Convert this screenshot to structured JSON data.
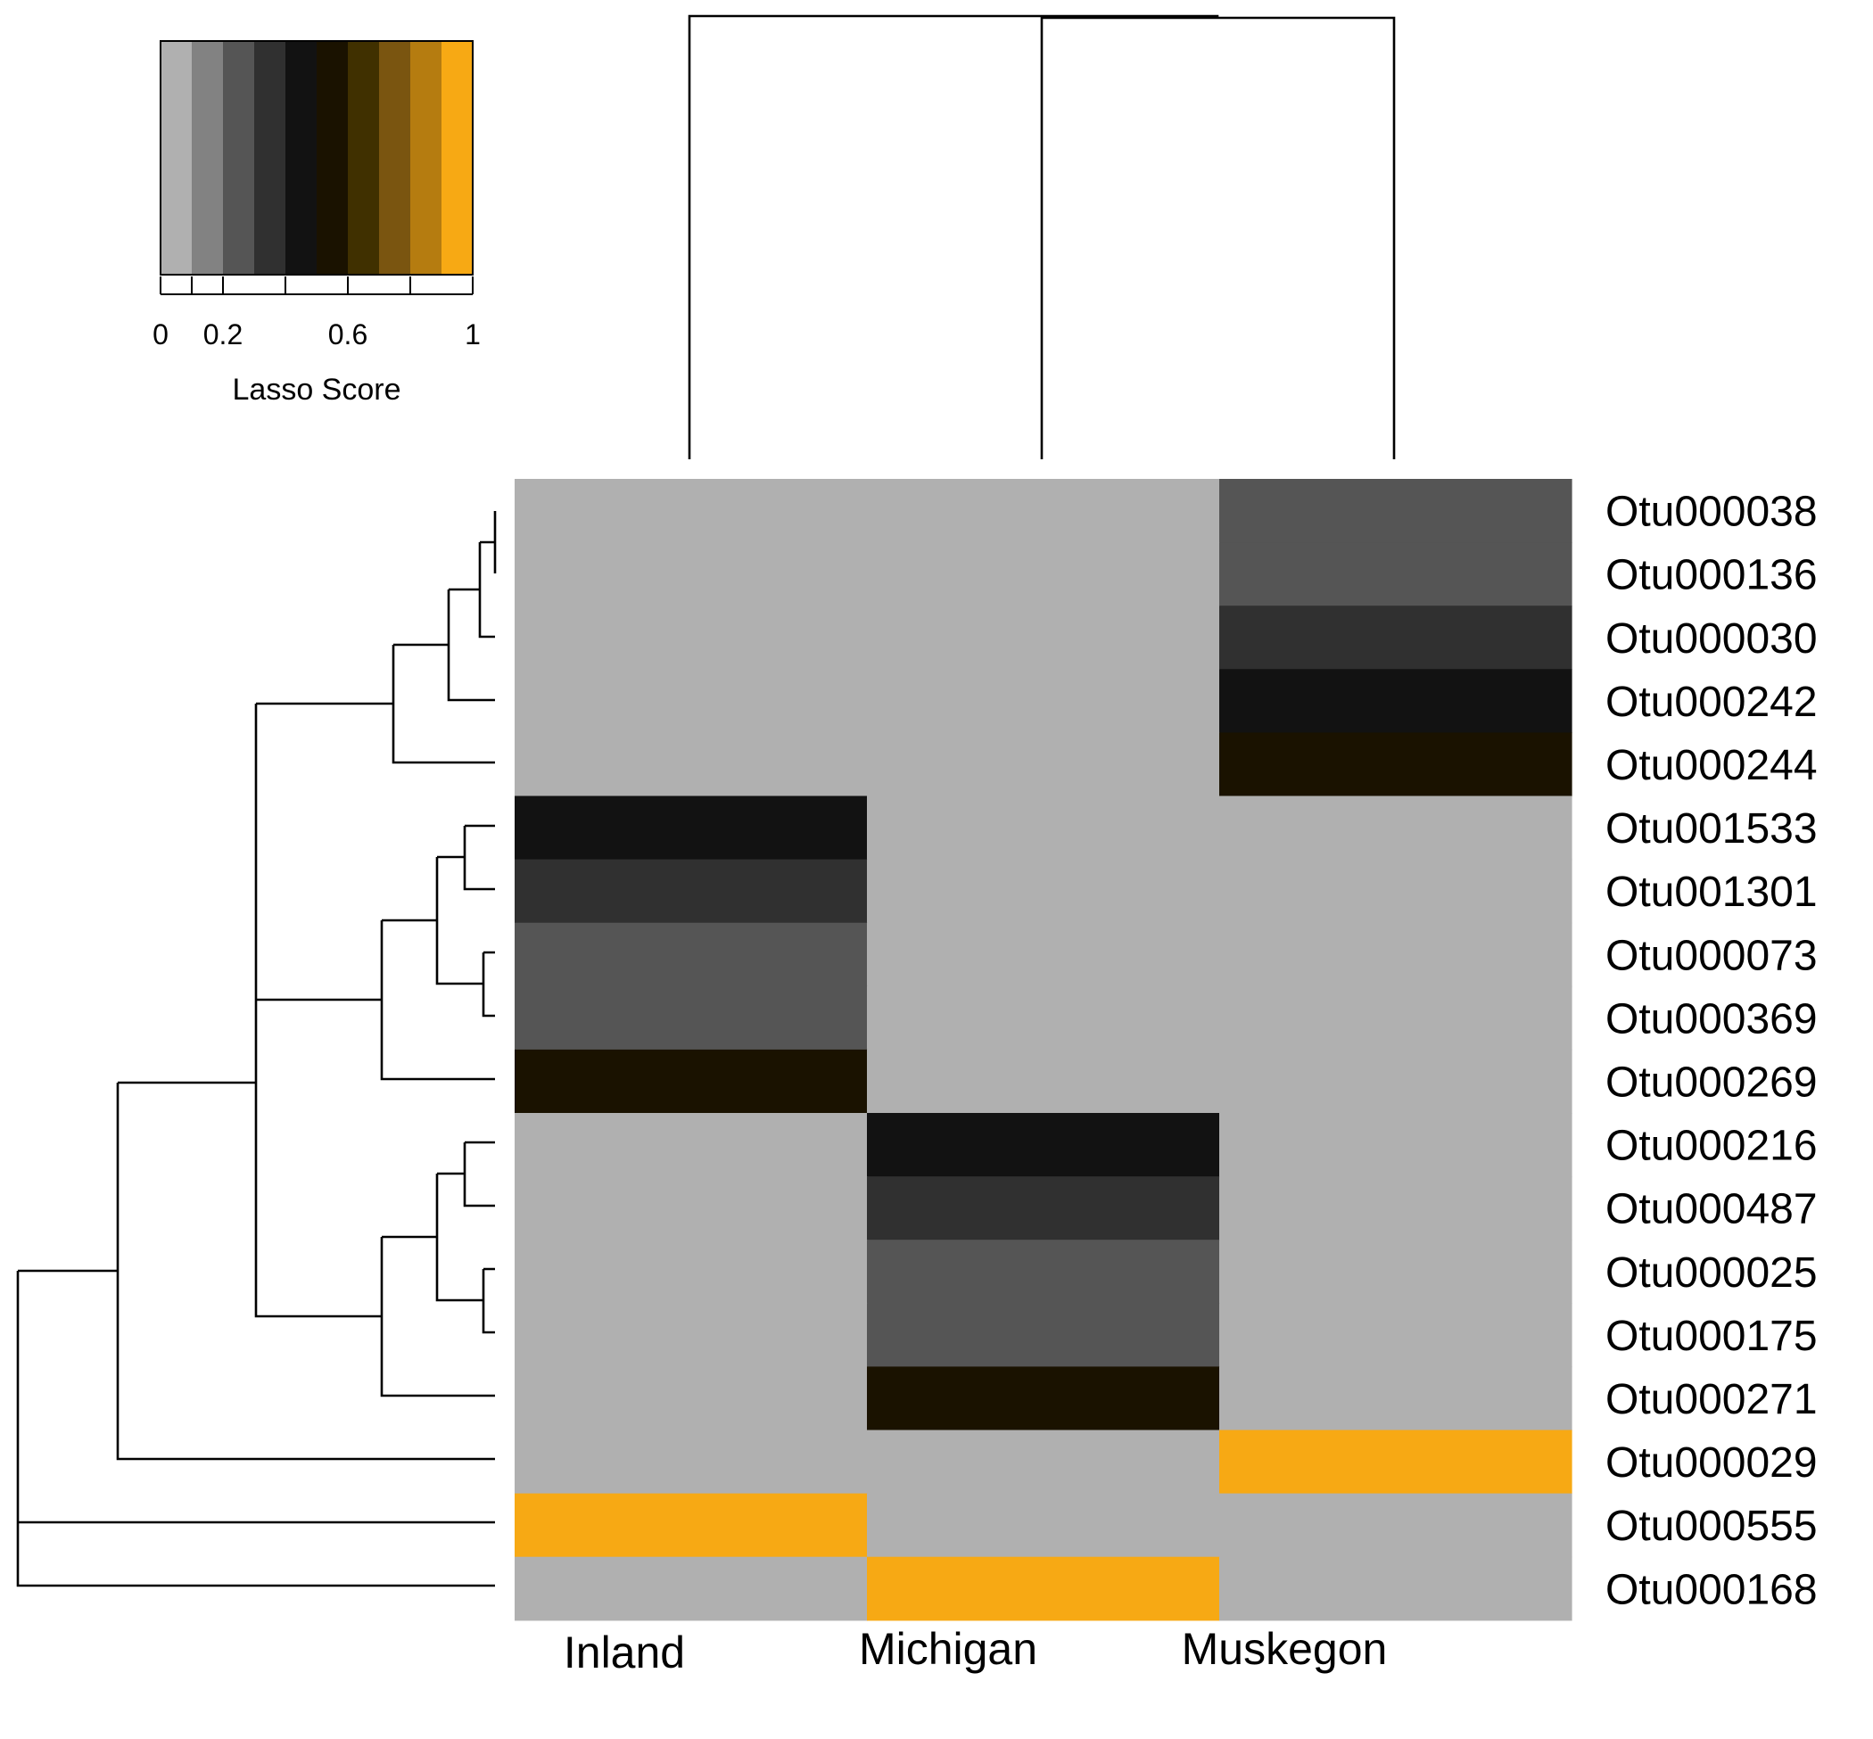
{
  "chart_data": {
    "type": "heatmap",
    "columns": [
      "Inland",
      "Michigan",
      "Muskegon"
    ],
    "rows": [
      "Otu000038",
      "Otu000136",
      "Otu000030",
      "Otu000242",
      "Otu000244",
      "Otu001533",
      "Otu001301",
      "Otu000073",
      "Otu000369",
      "Otu000269",
      "Otu000216",
      "Otu000487",
      "Otu000025",
      "Otu000175",
      "Otu000271",
      "Otu000029",
      "Otu000555",
      "Otu000168"
    ],
    "values": [
      [
        0.0,
        0.0,
        0.2
      ],
      [
        0.0,
        0.0,
        0.2
      ],
      [
        0.0,
        0.0,
        0.3
      ],
      [
        0.0,
        0.0,
        0.4
      ],
      [
        0.0,
        0.0,
        0.5
      ],
      [
        0.4,
        0.0,
        0.0
      ],
      [
        0.3,
        0.0,
        0.0
      ],
      [
        0.2,
        0.0,
        0.0
      ],
      [
        0.2,
        0.0,
        0.0
      ],
      [
        0.5,
        0.0,
        0.0
      ],
      [
        0.0,
        0.4,
        0.0
      ],
      [
        0.0,
        0.3,
        0.0
      ],
      [
        0.0,
        0.2,
        0.0
      ],
      [
        0.0,
        0.2,
        0.0
      ],
      [
        0.0,
        0.5,
        0.0
      ],
      [
        0.0,
        0.0,
        1.0
      ],
      [
        1.0,
        0.0,
        0.0
      ],
      [
        0.0,
        1.0,
        0.0
      ]
    ],
    "color_scale": {
      "title": "Lasso Score",
      "range": [
        0,
        1
      ],
      "colors": [
        "#b0b0b0",
        "#828282",
        "#555555",
        "#303030",
        "#121212",
        "#1a1200",
        "#403000",
        "#7a5510",
        "#b57c10",
        "#f7a914"
      ],
      "tick_values": [
        0,
        0.1,
        0.2,
        0.4,
        0.6,
        0.8,
        1
      ],
      "tick_labels": [
        {
          "value": 0,
          "label": "0"
        },
        {
          "value": 0.2,
          "label": "0.2"
        },
        {
          "value": 0.6,
          "label": "0.6"
        },
        {
          "value": 1,
          "label": "1"
        }
      ]
    },
    "column_dendrogram": {
      "merges": [
        {
          "left": "Michigan",
          "right": "Muskegon",
          "height": 0.98
        },
        {
          "left": "Inland",
          "right": "cluster",
          "height": 1.0
        }
      ]
    },
    "row_dendrogram_order": [
      "Otu000038",
      "Otu000136",
      "Otu000030",
      "Otu000242",
      "Otu000244",
      "Otu001533",
      "Otu001301",
      "Otu000073",
      "Otu000369",
      "Otu000269",
      "Otu000216",
      "Otu000487",
      "Otu000025",
      "Otu000175",
      "Otu000271",
      "Otu000029",
      "Otu000555",
      "Otu000168"
    ]
  }
}
